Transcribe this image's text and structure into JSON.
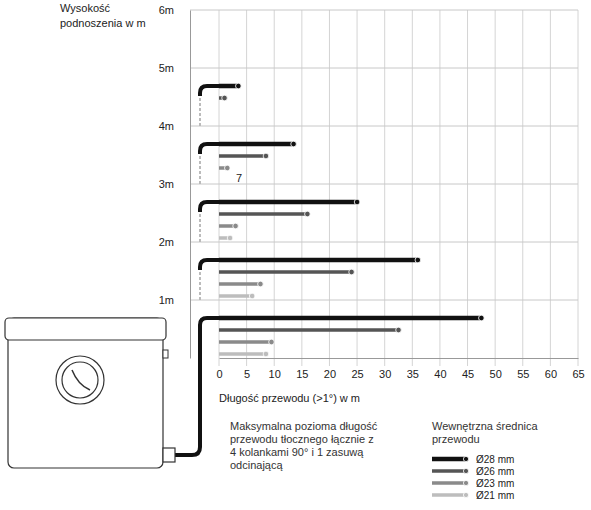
{
  "chart_data": {
    "type": "bar",
    "orientation": "horizontal",
    "y_label": "Wysokość podnoszenia  w m",
    "x_label": "Długość przewodu (>1°) w m",
    "annotations": [
      "Maksymalna pozioma długość przewodu tłocznego łącznie z 4 kolankami 90° i 1 zasuwą odcinającą",
      "7"
    ],
    "legend_title": "Wewnętrzna średnica przewodu",
    "legend": "bottom-right",
    "grid": true,
    "x": [
      1,
      2,
      3,
      4,
      5
    ],
    "series": [
      {
        "name": "Ø28 mm",
        "color": "#111111",
        "values": [
          47.5,
          36,
          25,
          13.5,
          3.5
        ]
      },
      {
        "name": "Ø26 mm",
        "color": "#555555",
        "values": [
          32.5,
          24,
          16,
          8.5,
          1
        ]
      },
      {
        "name": "Ø23 mm",
        "color": "#8a8a8a",
        "values": [
          9.5,
          7.5,
          3,
          1.5,
          null
        ]
      },
      {
        "name": "Ø21 mm",
        "color": "#bdbdbd",
        "values": [
          8.5,
          6,
          2,
          null,
          null
        ]
      }
    ],
    "xlim": [
      0,
      65
    ],
    "xticks": [
      0,
      5,
      10,
      15,
      20,
      25,
      30,
      35,
      40,
      45,
      50,
      55,
      60,
      65
    ],
    "ylim": [
      0,
      6
    ],
    "yticks": [
      {
        "value": 1,
        "label": "1m"
      },
      {
        "value": 2,
        "label": "2m"
      },
      {
        "value": 3,
        "label": "3m"
      },
      {
        "value": 4,
        "label": "4m"
      },
      {
        "value": 5,
        "label": "5m"
      },
      {
        "value": 6,
        "label": "6m"
      }
    ]
  }
}
